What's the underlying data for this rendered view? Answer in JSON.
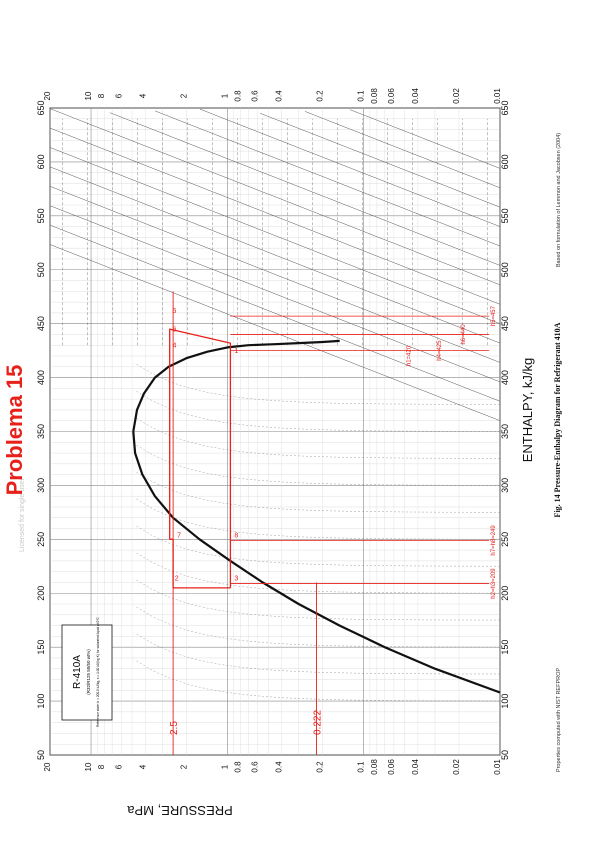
{
  "chart_data": {
    "type": "line",
    "title": "Pressure-Enthalpy Diagram for Refrigerant 410A",
    "figure_label": "Fig. 14",
    "xlabel": "ENTHALPY, kJ/kg",
    "ylabel": "PRESSURE, MPa",
    "x_scale": "linear",
    "y_scale": "log",
    "xlim": [
      50,
      650
    ],
    "ylim": [
      0.01,
      20
    ],
    "x_ticks": [
      "50",
      "100",
      "150",
      "200",
      "250",
      "300",
      "350",
      "400",
      "450",
      "500",
      "550",
      "600",
      "650"
    ],
    "y_ticks": [
      {
        "v": 20,
        "label": "20"
      },
      {
        "v": 10,
        "label": "10"
      },
      {
        "v": 8,
        "label": "8"
      },
      {
        "v": 6,
        "label": "6"
      },
      {
        "v": 4,
        "label": "4"
      },
      {
        "v": 2,
        "label": "2"
      },
      {
        "v": 1,
        "label": "1"
      },
      {
        "v": 0.8,
        "label": "0.8"
      },
      {
        "v": 0.6,
        "label": "0.6"
      },
      {
        "v": 0.4,
        "label": "0.4"
      },
      {
        "v": 0.2,
        "label": "0.2"
      },
      {
        "v": 0.1,
        "label": "0.1"
      },
      {
        "v": 0.08,
        "label": "0.08"
      },
      {
        "v": 0.06,
        "label": "0.06"
      },
      {
        "v": 0.04,
        "label": "0.04"
      },
      {
        "v": 0.02,
        "label": "0.02"
      },
      {
        "v": 0.01,
        "label": "0.01"
      }
    ],
    "grid": true,
    "series": [
      {
        "name": "Saturated liquid",
        "color": "#111111",
        "points": [
          [
            108,
            0.01
          ],
          [
            130,
            0.03
          ],
          [
            150,
            0.07
          ],
          [
            170,
            0.15
          ],
          [
            190,
            0.3
          ],
          [
            210,
            0.55
          ],
          [
            230,
            0.95
          ],
          [
            250,
            1.6
          ],
          [
            270,
            2.5
          ],
          [
            290,
            3.4
          ],
          [
            310,
            4.2
          ],
          [
            330,
            4.75
          ],
          [
            350,
            4.9
          ]
        ]
      },
      {
        "name": "Saturated vapor",
        "color": "#111111",
        "points": [
          [
            350,
            4.9
          ],
          [
            370,
            4.6
          ],
          [
            385,
            4.1
          ],
          [
            400,
            3.4
          ],
          [
            410,
            2.7
          ],
          [
            418,
            2.0
          ],
          [
            424,
            1.4
          ],
          [
            428,
            1.0
          ],
          [
            430,
            0.7
          ],
          [
            431,
            0.45
          ],
          [
            432,
            0.3
          ],
          [
            433,
            0.2
          ],
          [
            434,
            0.15
          ]
        ]
      },
      {
        "name": "Refrigeration cycle (annotation)",
        "color": "#e8201a",
        "points": [
          [
            205,
            0.95
          ],
          [
            205,
            2.5
          ],
          [
            250,
            2.5
          ],
          [
            250,
            2.65
          ],
          [
            445,
            2.65
          ],
          [
            432,
            0.95
          ],
          [
            205,
            0.95
          ]
        ]
      }
    ],
    "annotations": {
      "handwritten_title": "Problema 15",
      "pressure_marks": [
        "2.5",
        "0.222"
      ],
      "state_numbers": [
        "1",
        "2",
        "3",
        "4",
        "5",
        "6",
        "7",
        "8"
      ],
      "enthalpy_notes": [
        "h2=h3=209",
        "h7=h8=249",
        "h4=425",
        "h5=457",
        "h6=440",
        "h1=420"
      ]
    },
    "chart_label_R410A": "R-410A",
    "chart_subtitle": "(R32/R125 50/50 wt%)",
    "reference_state": "Reference state: h = 200.0 kJ/kg, s = 1.00 kJ/(kg·K) for saturated liquid at 0°C",
    "credit_left": "Properties computed with NIST REFPROP",
    "credit_right": "Based on formulation of Lemmon and Jacobsen (2004)",
    "watermark": "Licensed for single user"
  }
}
